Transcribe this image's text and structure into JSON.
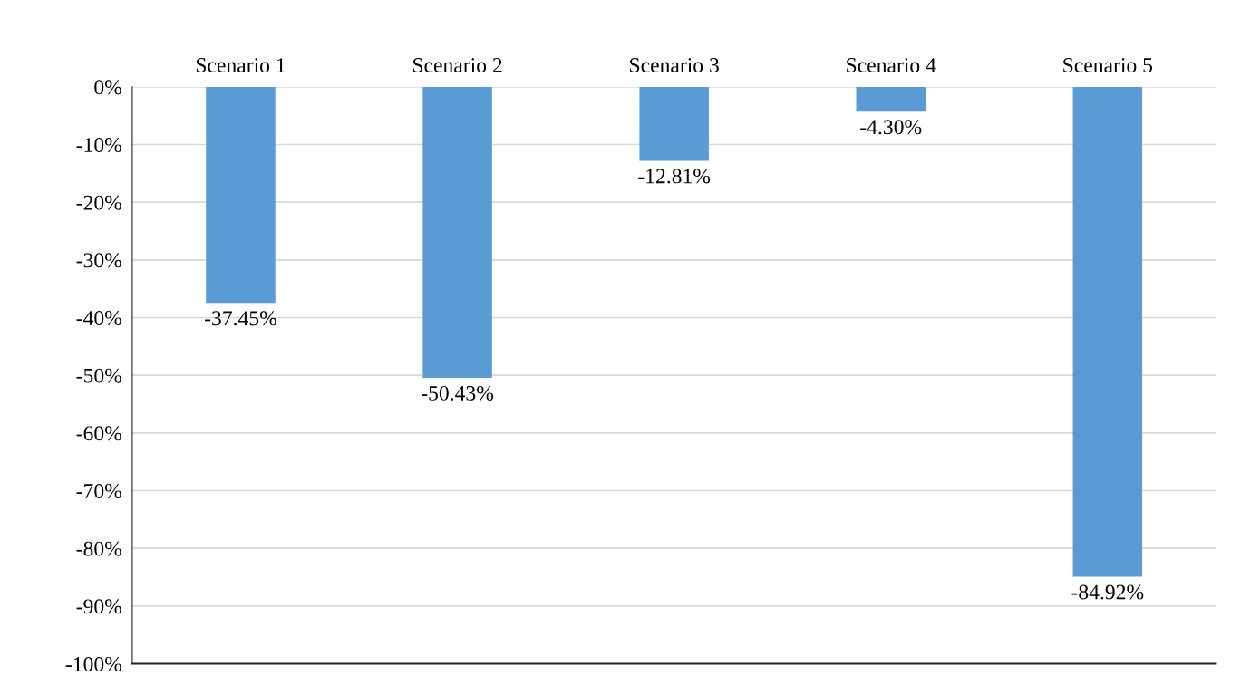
{
  "chart_data": {
    "type": "bar",
    "categories": [
      "Scenario 1",
      "Scenario 2",
      "Scenario 3",
      "Scenario 4",
      "Scenario 5"
    ],
    "values": [
      -37.45,
      -50.43,
      -12.81,
      -4.3,
      -84.92
    ],
    "value_labels": [
      "-37.45%",
      "-50.43%",
      "-12.81%",
      "-4.30%",
      "-84.92%"
    ],
    "color": "#5b9bd5",
    "ylim": [
      -100,
      0
    ],
    "yticks": [
      {
        "value": 0,
        "label": "0%"
      },
      {
        "value": -10,
        "label": "-10%"
      },
      {
        "value": -20,
        "label": "-20%"
      },
      {
        "value": -30,
        "label": "-30%"
      },
      {
        "value": -40,
        "label": "-40%"
      },
      {
        "value": -50,
        "label": "-50%"
      },
      {
        "value": -60,
        "label": "-60%"
      },
      {
        "value": -70,
        "label": "-70%"
      },
      {
        "value": -80,
        "label": "-80%"
      },
      {
        "value": -90,
        "label": "-90%"
      },
      {
        "value": -100,
        "label": "-100%"
      }
    ],
    "grid": "y"
  }
}
